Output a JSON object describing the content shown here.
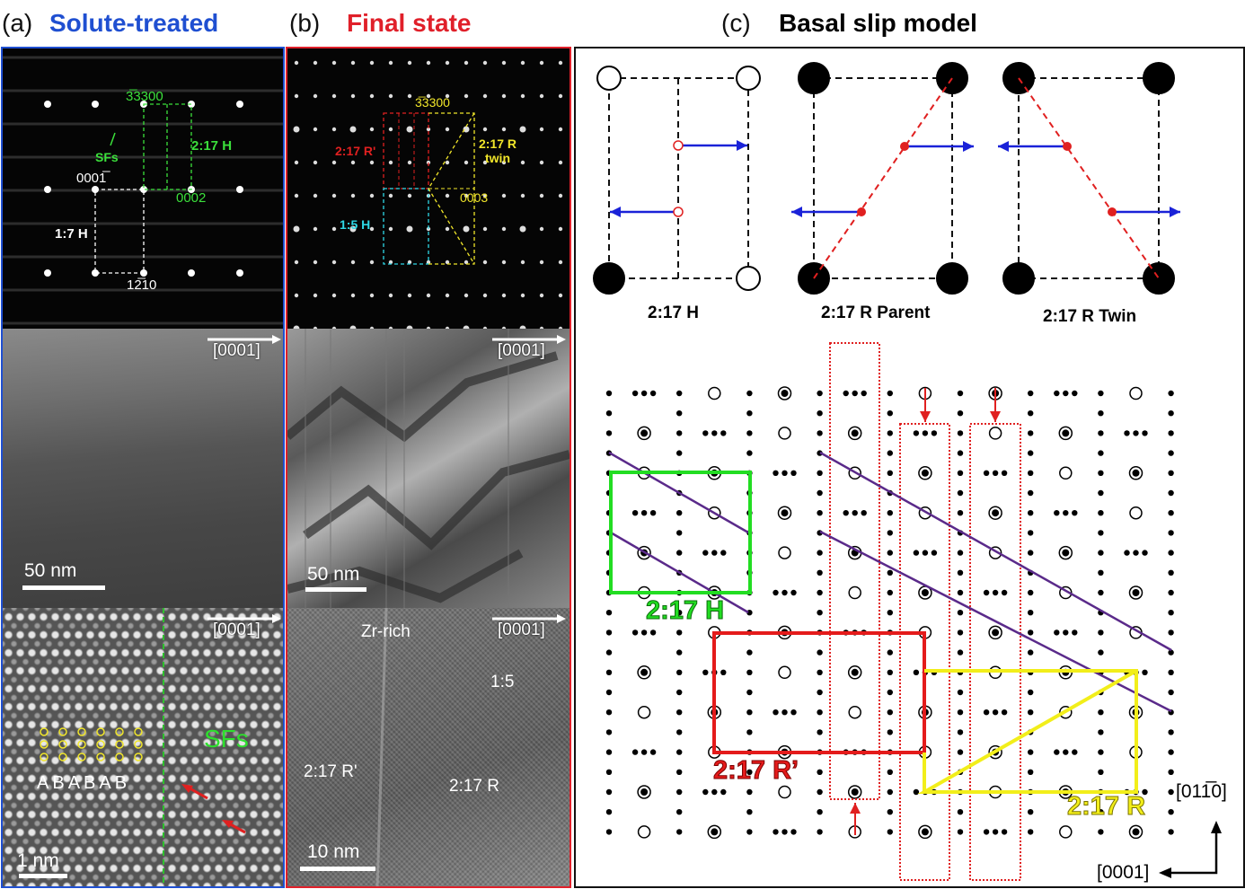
{
  "panel_a": {
    "letter": "(a)",
    "title": "Solute-treated",
    "border_color": "#1f4fd1",
    "diffraction": {
      "labels": {
        "idx_3300": "3̅3300",
        "idx_0002": "0002",
        "idx_0001bar": "0001̅",
        "idx_1210": "12̅10",
        "sfs": "SFs",
        "h217": "2:17 H",
        "h17": "1:7 H"
      }
    },
    "bright_field": {
      "axis": "[0001]",
      "scale": "50 nm"
    },
    "hrtem": {
      "axis": "[0001]",
      "scale": "1 nm",
      "sfs": "SFs",
      "stacking": [
        "A",
        "B",
        "A",
        "B",
        "A",
        "B"
      ]
    }
  },
  "panel_b": {
    "letter": "(b)",
    "title": "Final state",
    "border_color": "#e0202a",
    "diffraction": {
      "labels": {
        "idx_3300": "3̅3300",
        "idx_0003": "0003",
        "r217p": "2:17 R'",
        "r217twin_1": "2:17 R",
        "r217twin_2": "twin",
        "h15": "1:5 H"
      }
    },
    "bright_field": {
      "axis": "[0001]",
      "scale": "50 nm"
    },
    "hrtem": {
      "axis": "[0001]",
      "scale": "10 nm",
      "zr": "Zr-rich",
      "p15": "1:5",
      "r217p": "2:17 R'",
      "r217": "2:17 R"
    }
  },
  "panel_c": {
    "letter": "(c)",
    "title": "Basal slip model",
    "cells": [
      "2:17 H",
      "2:17 R Parent",
      "2:17 R Twin"
    ],
    "lattice_labels": {
      "h": "2:17 H",
      "rp": "2:17 R’",
      "r": "2:17 R"
    },
    "axes": {
      "vertical": "[011̅0]",
      "horizontal": "[0001]"
    },
    "colors": {
      "h": "#22dd22",
      "rp": "#e41b1b",
      "r": "#f2ee1a",
      "slip": "#5a2a8a",
      "arrow": "#1a22d8"
    }
  }
}
